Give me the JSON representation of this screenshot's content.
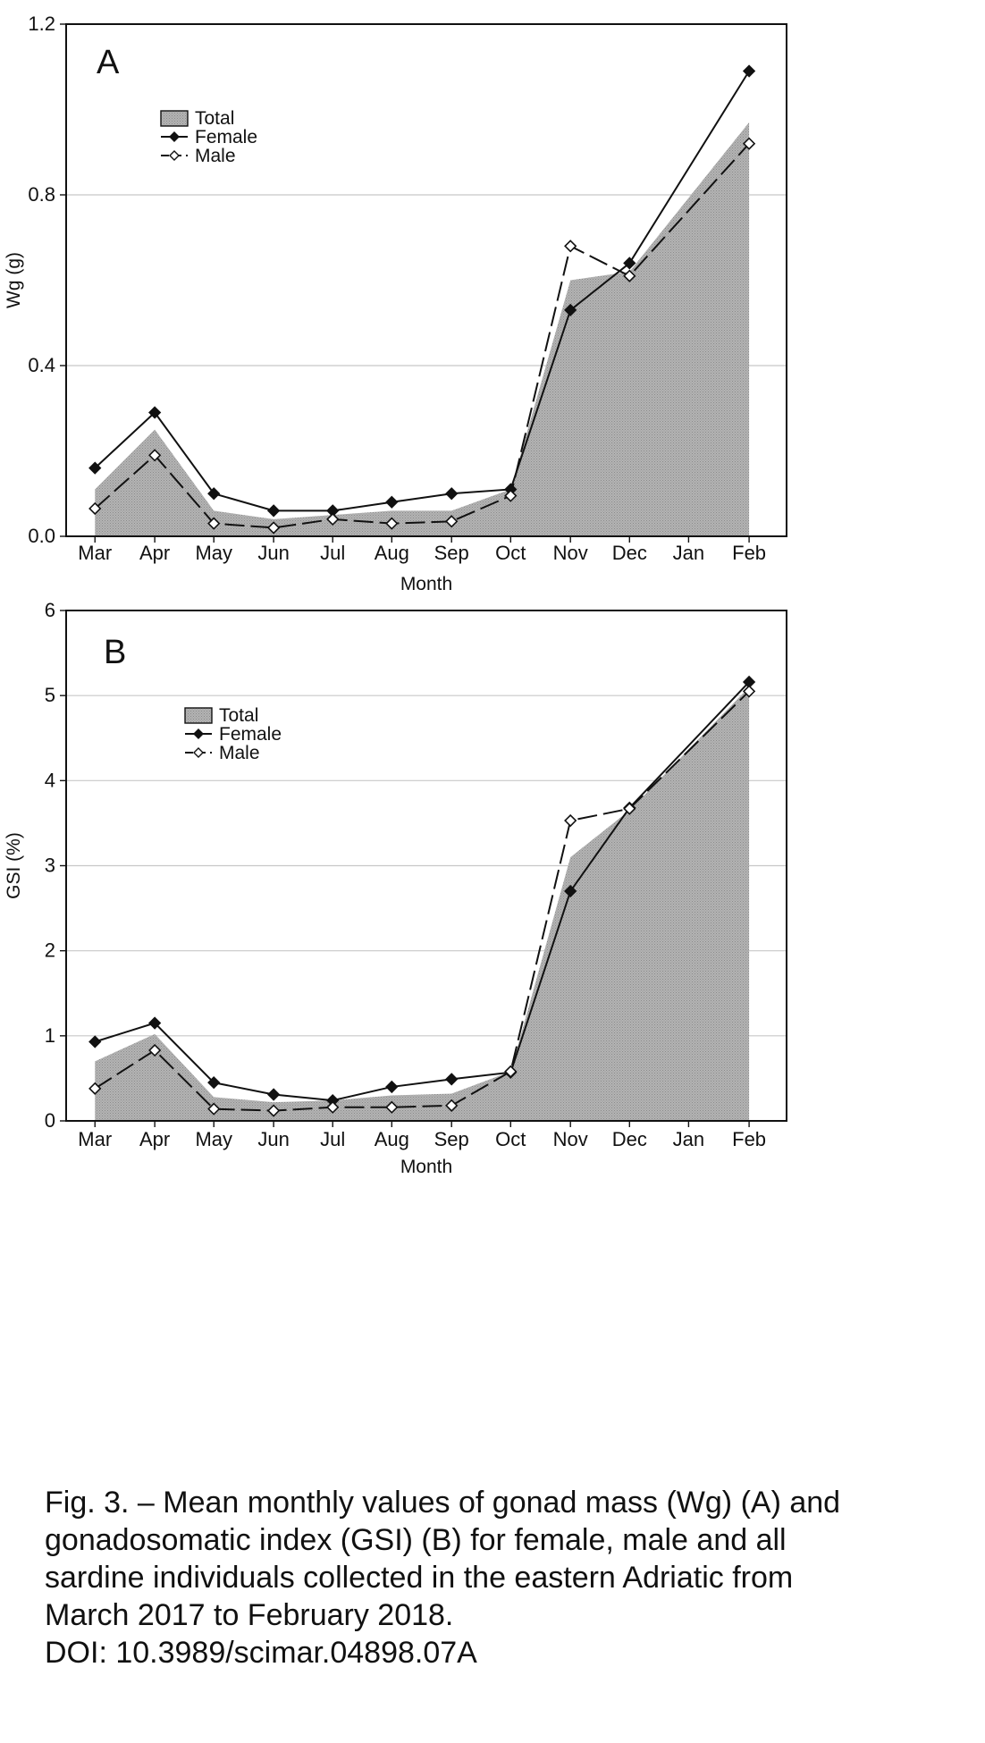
{
  "chart_data": [
    {
      "type": "area",
      "panel_label": "A",
      "categories": [
        "Mar",
        "Apr",
        "May",
        "Jun",
        "Jul",
        "Aug",
        "Sep",
        "Oct",
        "Nov",
        "Dec",
        "Jan",
        "Feb"
      ],
      "series": [
        {
          "name": "Total",
          "type": "area",
          "color": "#a6a6a6",
          "values": [
            0.11,
            0.25,
            0.06,
            0.04,
            0.05,
            0.06,
            0.06,
            0.11,
            0.6,
            0.62,
            null,
            0.97
          ]
        },
        {
          "name": "Female",
          "type": "line",
          "marker": "filled-diamond",
          "dash": "solid",
          "color": "#111111",
          "values": [
            0.16,
            0.29,
            0.1,
            0.06,
            0.06,
            0.08,
            0.1,
            0.11,
            0.53,
            0.64,
            null,
            1.09
          ]
        },
        {
          "name": "Male",
          "type": "line",
          "marker": "open-diamond",
          "dash": "dashed",
          "color": "#111111",
          "values": [
            0.065,
            0.19,
            0.03,
            0.02,
            0.04,
            0.03,
            0.035,
            0.095,
            0.68,
            0.61,
            null,
            0.92
          ]
        }
      ],
      "xlabel": "Month",
      "ylabel": "Wg (g)",
      "ylim": [
        0,
        1.2
      ],
      "yticks": [
        "0.0",
        "0.4",
        "0.8",
        "1.2"
      ],
      "grid": true,
      "legend_position": "upper-left"
    },
    {
      "type": "area",
      "panel_label": "B",
      "categories": [
        "Mar",
        "Apr",
        "May",
        "Jun",
        "Jul",
        "Aug",
        "Sep",
        "Oct",
        "Nov",
        "Dec",
        "Jan",
        "Feb"
      ],
      "series": [
        {
          "name": "Total",
          "type": "area",
          "color": "#a6a6a6",
          "values": [
            0.7,
            1.02,
            0.28,
            0.22,
            0.24,
            0.3,
            0.32,
            0.58,
            3.1,
            3.65,
            null,
            5.1
          ]
        },
        {
          "name": "Female",
          "type": "line",
          "marker": "filled-diamond",
          "dash": "solid",
          "color": "#111111",
          "values": [
            0.93,
            1.15,
            0.45,
            0.31,
            0.24,
            0.4,
            0.49,
            0.57,
            2.7,
            3.68,
            null,
            5.16
          ]
        },
        {
          "name": "Male",
          "type": "line",
          "marker": "open-diamond",
          "dash": "dashed",
          "color": "#111111",
          "values": [
            0.38,
            0.83,
            0.14,
            0.12,
            0.16,
            0.16,
            0.18,
            0.58,
            3.53,
            3.67,
            null,
            5.05
          ]
        }
      ],
      "xlabel": "Month",
      "ylabel": "GSI (%)",
      "ylim": [
        0,
        6
      ],
      "yticks": [
        "0",
        "1",
        "2",
        "3",
        "4",
        "5",
        "6"
      ],
      "grid": true,
      "legend_position": "upper-left"
    }
  ],
  "caption": {
    "lines": [
      "Fig. 3. – Mean monthly values of gonad mass (Wg) (A) and",
      "gonadosomatic index (GSI) (B) for female, male and all",
      "sardine individuals collected in the eastern Adriatic from",
      "March 2017 to February 2018.",
      "DOI: 10.3989/scimar.04898.07A"
    ]
  }
}
